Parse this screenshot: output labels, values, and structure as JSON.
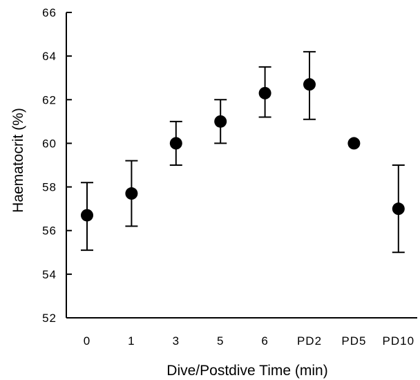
{
  "chart_data": {
    "type": "scatter",
    "title": "",
    "xlabel": "Dive/Postdive Time (min)",
    "ylabel": "Haematocrit (%)",
    "categories": [
      "0",
      "1",
      "3",
      "5",
      "6",
      "PD2",
      "PD5",
      "PD10"
    ],
    "ylim": [
      52,
      66
    ],
    "yticks": [
      52,
      54,
      56,
      58,
      60,
      62,
      64,
      66
    ],
    "grid": false,
    "series": [
      {
        "values": [
          56.7,
          57.7,
          60.0,
          61.0,
          62.3,
          62.7,
          60.0,
          57.0
        ],
        "error_low": [
          55.1,
          56.2,
          59.0,
          60.0,
          61.2,
          61.1,
          60.0,
          55.0
        ],
        "error_high": [
          58.2,
          59.2,
          61.0,
          62.0,
          63.5,
          64.2,
          60.0,
          59.0
        ]
      }
    ]
  }
}
